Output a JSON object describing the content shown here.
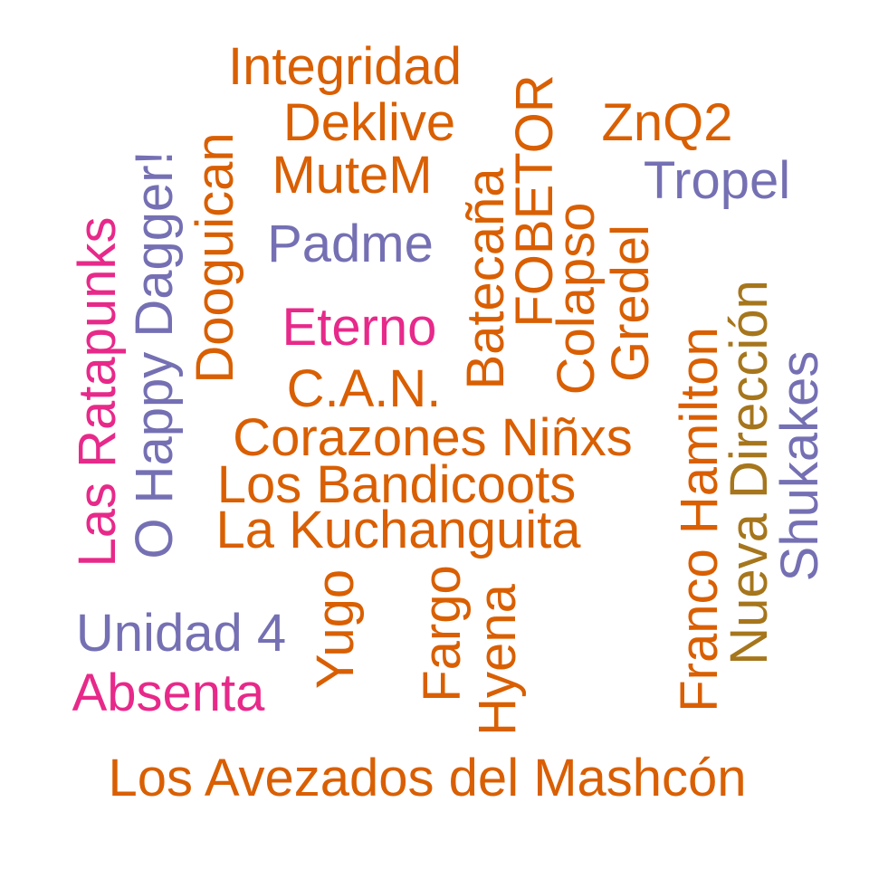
{
  "colors": {
    "orange": "#D95F02",
    "purple": "#7570B3",
    "pink": "#E7298A",
    "olive": "#A6761D"
  },
  "words": [
    {
      "text": "Integridad",
      "color": "orange"
    },
    {
      "text": "Deklive",
      "color": "orange"
    },
    {
      "text": "MuteM",
      "color": "orange"
    },
    {
      "text": "Padme",
      "color": "purple"
    },
    {
      "text": "Eterno",
      "color": "pink"
    },
    {
      "text": "C.A.N.",
      "color": "orange"
    },
    {
      "text": "Corazones Niñxs",
      "color": "orange"
    },
    {
      "text": "Los Bandicoots",
      "color": "orange"
    },
    {
      "text": "La Kuchanguita",
      "color": "orange"
    },
    {
      "text": "Unidad 4",
      "color": "purple"
    },
    {
      "text": "Absenta",
      "color": "pink"
    },
    {
      "text": "Los Avezados del Mashcón",
      "color": "orange"
    },
    {
      "text": "ZnQ2",
      "color": "orange"
    },
    {
      "text": "Tropel",
      "color": "purple"
    },
    {
      "text": "Las Ratapunks",
      "color": "pink"
    },
    {
      "text": "O Happy Dagger!",
      "color": "purple"
    },
    {
      "text": "Dooguican",
      "color": "orange"
    },
    {
      "text": "Batecaña",
      "color": "orange"
    },
    {
      "text": "FOBETOR",
      "color": "orange"
    },
    {
      "text": "Colapso",
      "color": "orange"
    },
    {
      "text": "Gredel",
      "color": "orange"
    },
    {
      "text": "Franco Hamilton",
      "color": "orange"
    },
    {
      "text": "Nueva Dirección",
      "color": "olive"
    },
    {
      "text": "Shukakes",
      "color": "purple"
    },
    {
      "text": "Yugo",
      "color": "orange"
    },
    {
      "text": "Fargo",
      "color": "orange"
    },
    {
      "text": "Hyena",
      "color": "orange"
    }
  ]
}
